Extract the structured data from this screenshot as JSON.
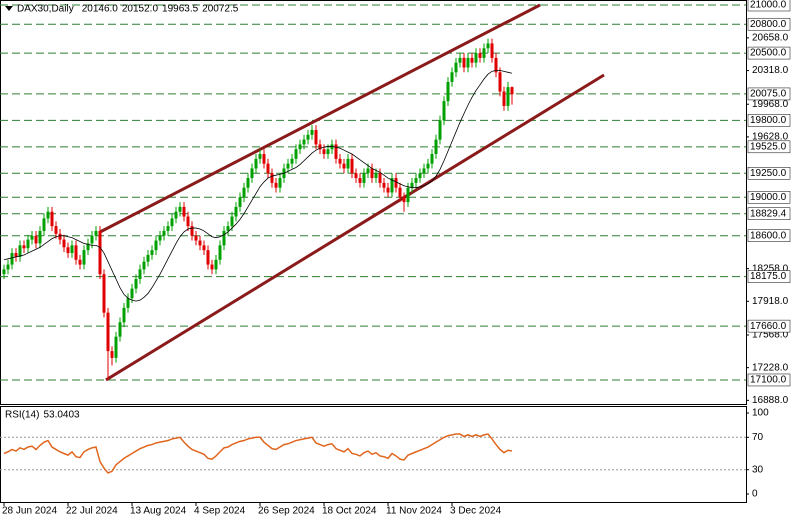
{
  "chart_data": {
    "type": "candlestick",
    "title": "DAX30,Daily",
    "header_values": [
      "20146.0",
      "20152.0",
      "19963.5",
      "20072.5"
    ],
    "categories": [
      "28 Jun 2024",
      null,
      null,
      null,
      null,
      null,
      null,
      null,
      null,
      null,
      null,
      null,
      null,
      null,
      null,
      null,
      "22 Jul 2024",
      null,
      null,
      null,
      null,
      null,
      null,
      null,
      null,
      null,
      null,
      null,
      null,
      null,
      null,
      null,
      "13 Aug 2024",
      null,
      null,
      null,
      null,
      null,
      null,
      null,
      null,
      null,
      null,
      null,
      null,
      null,
      null,
      null,
      "4 Sep 2024",
      null,
      null,
      null,
      null,
      null,
      null,
      null,
      null,
      null,
      null,
      null,
      null,
      null,
      null,
      null,
      "26 Sep 2024",
      null,
      null,
      null,
      null,
      null,
      null,
      null,
      null,
      null,
      null,
      null,
      null,
      null,
      null,
      null,
      "18 Oct 2024",
      null,
      null,
      null,
      null,
      null,
      null,
      null,
      null,
      null,
      null,
      null,
      null,
      null,
      null,
      null,
      "11 Nov 2024",
      null,
      null,
      null,
      null,
      null,
      null,
      null,
      null,
      null,
      null,
      null,
      null,
      null,
      null,
      null,
      "3 Dec 2024",
      null,
      null,
      null,
      null,
      null,
      null,
      null,
      null,
      null,
      null,
      null,
      null,
      null,
      null,
      null
    ],
    "ohlc": [
      [
        18200,
        18300,
        18150,
        18250
      ],
      [
        18250,
        18350,
        18200,
        18300
      ],
      [
        18300,
        18470,
        18250,
        18420
      ],
      [
        18420,
        18470,
        18330,
        18380
      ],
      [
        18380,
        18550,
        18330,
        18500
      ],
      [
        18500,
        18550,
        18420,
        18470
      ],
      [
        18470,
        18610,
        18420,
        18560
      ],
      [
        18560,
        18650,
        18510,
        18600
      ],
      [
        18600,
        18650,
        18470,
        18520
      ],
      [
        18520,
        18700,
        18470,
        18650
      ],
      [
        18650,
        18830,
        18600,
        18780
      ],
      [
        18780,
        18900,
        18730,
        18850
      ],
      [
        18850,
        18900,
        18650,
        18700
      ],
      [
        18700,
        18750,
        18570,
        18620
      ],
      [
        18620,
        18670,
        18510,
        18560
      ],
      [
        18560,
        18610,
        18430,
        18480
      ],
      [
        18480,
        18530,
        18370,
        18420
      ],
      [
        18420,
        18550,
        18370,
        18500
      ],
      [
        18500,
        18550,
        18300,
        18350
      ],
      [
        18350,
        18400,
        18250,
        18300
      ],
      [
        18300,
        18500,
        18250,
        18450
      ],
      [
        18450,
        18570,
        18400,
        18520
      ],
      [
        18520,
        18650,
        18470,
        18600
      ],
      [
        18600,
        18700,
        18550,
        18650
      ],
      [
        18650,
        18700,
        18150,
        18200
      ],
      [
        18200,
        18250,
        17750,
        17800
      ],
      [
        17800,
        17850,
        17100,
        17400
      ],
      [
        17400,
        17450,
        17250,
        17330
      ],
      [
        17330,
        17600,
        17280,
        17550
      ],
      [
        17550,
        17750,
        17500,
        17700
      ],
      [
        17700,
        17900,
        17650,
        17850
      ],
      [
        17850,
        18000,
        17800,
        17950
      ],
      [
        17950,
        18100,
        17900,
        18050
      ],
      [
        18050,
        18200,
        18000,
        18150
      ],
      [
        18150,
        18300,
        18100,
        18250
      ],
      [
        18250,
        18380,
        18200,
        18330
      ],
      [
        18330,
        18450,
        18280,
        18400
      ],
      [
        18400,
        18500,
        18350,
        18450
      ],
      [
        18450,
        18600,
        18400,
        18550
      ],
      [
        18550,
        18650,
        18500,
        18600
      ],
      [
        18600,
        18700,
        18550,
        18650
      ],
      [
        18650,
        18750,
        18600,
        18700
      ],
      [
        18700,
        18830,
        18650,
        18780
      ],
      [
        18780,
        18900,
        18730,
        18850
      ],
      [
        18850,
        18950,
        18800,
        18900
      ],
      [
        18900,
        18950,
        18750,
        18800
      ],
      [
        18800,
        18850,
        18650,
        18700
      ],
      [
        18700,
        18750,
        18550,
        18600
      ],
      [
        18600,
        18650,
        18500,
        18550
      ],
      [
        18550,
        18600,
        18450,
        18500
      ],
      [
        18500,
        18550,
        18400,
        18450
      ],
      [
        18450,
        18500,
        18250,
        18300
      ],
      [
        18300,
        18350,
        18200,
        18250
      ],
      [
        18250,
        18400,
        18200,
        18350
      ],
      [
        18350,
        18550,
        18300,
        18500
      ],
      [
        18500,
        18700,
        18450,
        18650
      ],
      [
        18650,
        18750,
        18600,
        18700
      ],
      [
        18700,
        18850,
        18650,
        18800
      ],
      [
        18800,
        18950,
        18750,
        18900
      ],
      [
        18900,
        19050,
        18850,
        19000
      ],
      [
        19000,
        19150,
        18950,
        19100
      ],
      [
        19100,
        19250,
        19050,
        19200
      ],
      [
        19200,
        19350,
        19150,
        19300
      ],
      [
        19300,
        19450,
        19250,
        19400
      ],
      [
        19400,
        19500,
        19350,
        19450
      ],
      [
        19450,
        19500,
        19300,
        19350
      ],
      [
        19350,
        19400,
        19200,
        19250
      ],
      [
        19250,
        19300,
        19100,
        19150
      ],
      [
        19150,
        19200,
        19050,
        19100
      ],
      [
        19100,
        19250,
        19050,
        19200
      ],
      [
        19200,
        19350,
        19150,
        19300
      ],
      [
        19300,
        19400,
        19250,
        19350
      ],
      [
        19350,
        19450,
        19300,
        19400
      ],
      [
        19400,
        19550,
        19350,
        19500
      ],
      [
        19500,
        19600,
        19450,
        19550
      ],
      [
        19550,
        19650,
        19500,
        19600
      ],
      [
        19600,
        19700,
        19550,
        19650
      ],
      [
        19650,
        19750,
        19600,
        19700
      ],
      [
        19700,
        19750,
        19500,
        19550
      ],
      [
        19550,
        19600,
        19450,
        19500
      ],
      [
        19500,
        19550,
        19400,
        19450
      ],
      [
        19450,
        19550,
        19400,
        19500
      ],
      [
        19500,
        19600,
        19450,
        19550
      ],
      [
        19550,
        19600,
        19350,
        19400
      ],
      [
        19400,
        19450,
        19300,
        19350
      ],
      [
        19350,
        19400,
        19250,
        19300
      ],
      [
        19300,
        19450,
        19250,
        19400
      ],
      [
        19400,
        19450,
        19200,
        19250
      ],
      [
        19250,
        19300,
        19150,
        19200
      ],
      [
        19200,
        19250,
        19100,
        19150
      ],
      [
        19150,
        19300,
        19100,
        19250
      ],
      [
        19250,
        19350,
        19200,
        19300
      ],
      [
        19300,
        19350,
        19150,
        19200
      ],
      [
        19200,
        19300,
        19150,
        19250
      ],
      [
        19250,
        19300,
        19100,
        19150
      ],
      [
        19150,
        19200,
        19050,
        19100
      ],
      [
        19100,
        19150,
        19000,
        19050
      ],
      [
        19050,
        19250,
        19000,
        19200
      ],
      [
        19200,
        19250,
        19050,
        19100
      ],
      [
        19100,
        19150,
        18950,
        19000
      ],
      [
        19000,
        19050,
        18850,
        18950
      ],
      [
        18950,
        19150,
        18900,
        19100
      ],
      [
        19100,
        19200,
        19050,
        19150
      ],
      [
        19150,
        19250,
        19100,
        19200
      ],
      [
        19200,
        19300,
        19150,
        19250
      ],
      [
        19250,
        19350,
        19200,
        19300
      ],
      [
        19300,
        19400,
        19250,
        19350
      ],
      [
        19350,
        19500,
        19300,
        19450
      ],
      [
        19450,
        19650,
        19400,
        19600
      ],
      [
        19600,
        19850,
        19550,
        19800
      ],
      [
        19800,
        20050,
        19750,
        20000
      ],
      [
        20000,
        20250,
        19950,
        20200
      ],
      [
        20200,
        20350,
        20150,
        20300
      ],
      [
        20300,
        20450,
        20250,
        20400
      ],
      [
        20400,
        20500,
        20350,
        20450
      ],
      [
        20450,
        20500,
        20300,
        20350
      ],
      [
        20350,
        20500,
        20300,
        20450
      ],
      [
        20450,
        20500,
        20350,
        20400
      ],
      [
        20400,
        20550,
        20350,
        20500
      ],
      [
        20500,
        20550,
        20400,
        20450
      ],
      [
        20450,
        20600,
        20400,
        20550
      ],
      [
        20550,
        20650,
        20500,
        20600
      ],
      [
        20600,
        20650,
        20400,
        20450
      ],
      [
        20450,
        20500,
        20250,
        20300
      ],
      [
        20300,
        20350,
        20050,
        20100
      ],
      [
        20100,
        20150,
        19900,
        19950
      ],
      [
        19950,
        20200,
        19900,
        20146
      ],
      [
        20146,
        20152,
        19963.5,
        20072.5
      ]
    ],
    "up_color": "#00a000",
    "down_color": "#e00000",
    "ma": {
      "color": "#000000",
      "values": [
        18350,
        18360,
        18370,
        18380,
        18390,
        18400,
        18420,
        18440,
        18460,
        18480,
        18510,
        18540,
        18570,
        18590,
        18600,
        18600,
        18590,
        18580,
        18560,
        18540,
        18520,
        18510,
        18500,
        18500,
        18480,
        18420,
        18330,
        18240,
        18150,
        18060,
        17990,
        17950,
        17930,
        17920,
        17930,
        17960,
        18000,
        18060,
        18130,
        18200,
        18280,
        18360,
        18440,
        18520,
        18590,
        18640,
        18670,
        18680,
        18680,
        18670,
        18650,
        18620,
        18590,
        18580,
        18590,
        18610,
        18640,
        18680,
        18720,
        18770,
        18830,
        18900,
        18970,
        19040,
        19110,
        19160,
        19200,
        19220,
        19230,
        19240,
        19250,
        19270,
        19290,
        19310,
        19340,
        19380,
        19420,
        19460,
        19490,
        19510,
        19520,
        19530,
        19530,
        19520,
        19510,
        19490,
        19470,
        19450,
        19420,
        19390,
        19360,
        19330,
        19300,
        19280,
        19260,
        19230,
        19200,
        19180,
        19160,
        19140,
        19120,
        19110,
        19100,
        19100,
        19110,
        19120,
        19140,
        19170,
        19220,
        19290,
        19380,
        19480,
        19580,
        19680,
        19780,
        19870,
        19960,
        20040,
        20110,
        20170,
        20230,
        20280,
        20310,
        20320,
        20320,
        20310,
        20300,
        20290
      ]
    },
    "channels": [
      {
        "color": "#8b1a1a",
        "points": [
          [
            24,
            18639
          ],
          [
            134,
            21000
          ]
        ]
      },
      {
        "color": "#8b1a1a",
        "points": [
          [
            25.5,
            17100
          ],
          [
            150,
            20272
          ]
        ]
      }
    ],
    "ylim": [
      16850,
      21052
    ],
    "yticks": [
      {
        "value": 20658,
        "label": "20658.0"
      },
      {
        "value": 20318,
        "label": "20318.0"
      },
      {
        "value": 19968,
        "label": "19968.0"
      },
      {
        "value": 19628,
        "label": "19628.0"
      },
      {
        "value": 18258,
        "label": "18258.0"
      },
      {
        "value": 17918,
        "label": "17918.0"
      },
      {
        "value": 17568,
        "label": "17568.0"
      },
      {
        "value": 17228,
        "label": "17228.0"
      },
      {
        "value": 16888,
        "label": "16888.0"
      }
    ],
    "levels": [
      {
        "value": 21000,
        "label": "21000.0"
      },
      {
        "value": 20800,
        "label": "20800.0"
      },
      {
        "value": 20500,
        "label": "20500.0"
      },
      {
        "value": 20075,
        "label": "20075.0"
      },
      {
        "value": 19800,
        "label": "19800.0"
      },
      {
        "value": 19525,
        "label": "19525.0"
      },
      {
        "value": 19250,
        "label": "19250.0"
      },
      {
        "value": 19000,
        "label": "19000.0"
      },
      {
        "value": 18829.4,
        "label": "18829.4"
      },
      {
        "value": 18600,
        "label": "18600.0"
      },
      {
        "value": 18175,
        "label": "18175.0"
      },
      {
        "value": 17660,
        "label": "17660.0"
      },
      {
        "value": 17100,
        "label": "17100.0"
      }
    ],
    "level_color": "#2e7d32",
    "rsi": {
      "label": "RSI(14)",
      "color": "#e0661e",
      "ylim": [
        0,
        100
      ],
      "yticks": [
        100,
        70,
        30,
        0
      ],
      "levels": [
        70,
        30
      ],
      "values": [
        50,
        52,
        55,
        53,
        57,
        55,
        58,
        59,
        55,
        60,
        64,
        66,
        58,
        55,
        52,
        50,
        48,
        52,
        46,
        45,
        52,
        55,
        57,
        58,
        40,
        32,
        26,
        28,
        36,
        40,
        44,
        47,
        50,
        53,
        56,
        58,
        60,
        61,
        63,
        64,
        65,
        66,
        68,
        69,
        70,
        64,
        59,
        55,
        53,
        51,
        49,
        44,
        43,
        47,
        52,
        57,
        58,
        61,
        63,
        65,
        66,
        68,
        69,
        70,
        70,
        64,
        60,
        56,
        55,
        58,
        61,
        62,
        64,
        66,
        67,
        68,
        69,
        70,
        63,
        61,
        59,
        61,
        62,
        56,
        54,
        52,
        56,
        50,
        49,
        47,
        51,
        53,
        49,
        51,
        47,
        46,
        44,
        50,
        47,
        43,
        42,
        48,
        50,
        52,
        54,
        56,
        58,
        61,
        64,
        67,
        70,
        72,
        73,
        74,
        74,
        71,
        73,
        71,
        73,
        71,
        73,
        74,
        68,
        61,
        55,
        51,
        54,
        53.0403
      ]
    }
  }
}
